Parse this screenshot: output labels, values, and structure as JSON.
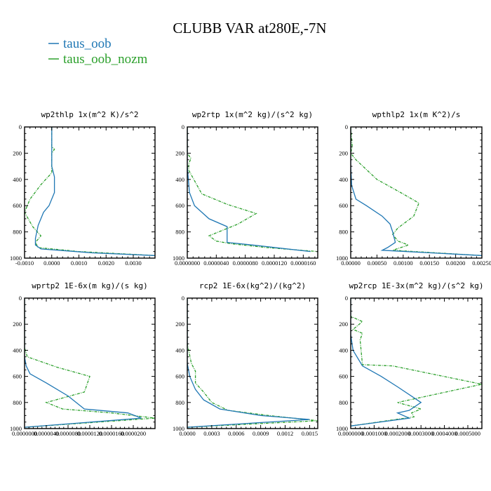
{
  "title": "CLUBB VAR at280E,-7N",
  "colors": {
    "taus_oob": "#1f77b4",
    "taus_oob_nozm": "#2ca02c"
  },
  "legend": [
    {
      "label": "taus_oob",
      "color": "#1f77b4"
    },
    {
      "label": "taus_oob_nozm",
      "color": "#2ca02c"
    }
  ],
  "chart_data": [
    {
      "type": "line",
      "title": "wp2thlp  1x(m^2 K)/s^2",
      "xlim": [
        -0.001,
        0.0038
      ],
      "ylim": [
        1000,
        0
      ],
      "yticks": [
        0,
        200,
        400,
        600,
        800,
        1000
      ],
      "xticks": [
        "-0.0010",
        "0.0000",
        "0.0010",
        "0.0020",
        "0.0030"
      ],
      "xtick_values": [
        -0.001,
        0.0,
        0.001,
        0.002,
        0.003
      ],
      "series": [
        {
          "name": "taus_oob",
          "x": [
            0.0,
            0.0,
            0.0,
            0.0001,
            0.0001,
            -0.0001,
            -0.0003,
            -0.0005,
            -0.0006,
            -0.0006,
            -0.0004,
            0.0015,
            0.0038
          ],
          "y": [
            0,
            150,
            300,
            380,
            500,
            600,
            650,
            750,
            850,
            900,
            930,
            960,
            980
          ]
        },
        {
          "name": "taus_oob_nozm",
          "x": [
            0.0,
            0.0,
            0.0001,
            0.0,
            0.0,
            -0.0004,
            -0.0008,
            -0.001,
            -0.0007,
            -0.0004,
            -0.0006,
            -0.0005,
            0.001,
            0.0038
          ],
          "y": [
            0,
            150,
            170,
            200,
            350,
            440,
            550,
            650,
            760,
            830,
            880,
            920,
            950,
            980
          ]
        }
      ]
    },
    {
      "type": "line",
      "title": "wp2rtp  1x(m^2 kg)/(s^2 kg)",
      "xlim": [
        0.0,
        1.8e-05
      ],
      "ylim": [
        1000,
        0
      ],
      "yticks": [
        0,
        200,
        400,
        600,
        800,
        1000
      ],
      "xticks": [
        "0.0000000",
        "0.0000040",
        "0.0000080",
        "0.0000120",
        "0.0000160"
      ],
      "xtick_values": [
        0.0,
        4e-06,
        8e-06,
        1.2e-05,
        1.6e-05
      ],
      "series": [
        {
          "name": "taus_oob",
          "x": [
            0.0,
            0.0,
            3e-07,
            1e-06,
            3e-06,
            5.5e-06,
            5.5e-06,
            9e-06,
            1.7e-05
          ],
          "y": [
            0,
            300,
            500,
            600,
            700,
            760,
            880,
            900,
            950
          ]
        },
        {
          "name": "taus_oob_nozm",
          "x": [
            0.0,
            0.0,
            5e-07,
            2e-07,
            2e-07,
            2e-06,
            5.5e-06,
            9.5e-06,
            7e-06,
            3e-06,
            4e-06,
            6e-06,
            1.1e-05,
            1.8e-05
          ],
          "y": [
            0,
            200,
            240,
            280,
            330,
            510,
            590,
            660,
            740,
            830,
            870,
            890,
            920,
            950
          ]
        }
      ]
    },
    {
      "type": "line",
      "title": "wpthlp2  1x(m K^2)/s",
      "xlim": [
        0.0,
        0.0025
      ],
      "ylim": [
        1000,
        0
      ],
      "yticks": [
        0,
        200,
        400,
        600,
        800,
        1000
      ],
      "xticks": [
        "0.00000",
        "0.00050",
        "0.00100",
        "0.00150",
        "0.00200",
        "0.00250"
      ],
      "xtick_values": [
        0.0,
        0.0005,
        0.001,
        0.0015,
        0.002,
        0.0025
      ],
      "series": [
        {
          "name": "taus_oob",
          "x": [
            0.0,
            0.0,
            2e-05,
            0.0001,
            0.0003,
            0.0006,
            0.00075,
            0.0008,
            0.00085,
            0.0007,
            0.0006,
            0.0025
          ],
          "y": [
            0,
            300,
            450,
            550,
            600,
            680,
            740,
            800,
            880,
            920,
            940,
            980
          ]
        },
        {
          "name": "taus_oob_nozm",
          "x": [
            0.0,
            3e-05,
            0.0,
            0.0001,
            0.0005,
            0.00095,
            0.0013,
            0.0012,
            0.0009,
            0.0008,
            0.0009,
            0.0011,
            0.0008,
            0.0025
          ],
          "y": [
            0,
            150,
            200,
            250,
            400,
            500,
            580,
            680,
            770,
            820,
            870,
            900,
            940,
            980
          ]
        }
      ]
    },
    {
      "type": "line",
      "title": "wprtp2  1E-6x(m kg)/(s kg)",
      "xlim": [
        0.0,
        2.4e-05
      ],
      "ylim": [
        1000,
        0
      ],
      "yticks": [
        0,
        200,
        400,
        600,
        800,
        1000
      ],
      "xticks": [
        "0.0000000",
        "0.0000040",
        "0.0000080",
        "0.0000120",
        "0.0000160",
        "0.0000200"
      ],
      "xtick_values": [
        0.0,
        4e-06,
        8e-06,
        1.2e-05,
        1.6e-05,
        2e-05
      ],
      "series": [
        {
          "name": "taus_oob",
          "x": [
            0.0,
            0.0,
            3e-07,
            1e-06,
            4e-06,
            8e-06,
            1.1e-05,
            1.9e-05,
            2.15e-05,
            0.0
          ],
          "y": [
            0,
            450,
            520,
            580,
            650,
            750,
            850,
            880,
            920,
            990
          ]
        },
        {
          "name": "taus_oob_nozm",
          "x": [
            0.0,
            0.0,
            5e-07,
            6e-06,
            1.2e-05,
            1.1e-05,
            4e-06,
            7e-06,
            1.6e-05,
            2.4e-05,
            0.0
          ],
          "y": [
            0,
            380,
            450,
            530,
            600,
            720,
            800,
            850,
            880,
            920,
            990
          ]
        }
      ]
    },
    {
      "type": "line",
      "title": "rcp2  1E-6x(kg^2)/(kg^2)",
      "xlim": [
        0.0,
        0.0016
      ],
      "ylim": [
        1000,
        0
      ],
      "yticks": [
        0,
        200,
        400,
        600,
        800,
        1000
      ],
      "xticks": [
        "0.0000",
        "0.0003",
        "0.0006",
        "0.0009",
        "0.0012",
        "0.0015"
      ],
      "xtick_values": [
        0.0,
        0.0003,
        0.0006,
        0.0009,
        0.0012,
        0.0015
      ],
      "series": [
        {
          "name": "taus_oob",
          "x": [
            0.0,
            0.0,
            3e-05,
            0.0001,
            0.0002,
            0.0004,
            0.0009,
            0.0015,
            0.0
          ],
          "y": [
            0,
            500,
            600,
            700,
            780,
            850,
            900,
            930,
            990
          ]
        },
        {
          "name": "taus_oob_nozm",
          "x": [
            0.0,
            0.0,
            5e-05,
            0.0001,
            0.0001,
            0.0002,
            0.0003,
            0.0005,
            0.001,
            0.0016,
            0.0
          ],
          "y": [
            0,
            350,
            500,
            560,
            650,
            720,
            800,
            860,
            900,
            940,
            990
          ]
        }
      ]
    },
    {
      "type": "line",
      "title": "wp2rcp  1E-3x(m^2 kg)/(s^2 kg)",
      "xlim": [
        0.0,
        0.00056
      ],
      "ylim": [
        1000,
        0
      ],
      "yticks": [
        0,
        200,
        400,
        600,
        800,
        1000
      ],
      "xticks": [
        "0.0000000",
        "0.0001000",
        "0.0002000",
        "0.0003000",
        "0.0004000",
        "0.0005000"
      ],
      "xtick_values": [
        0.0,
        0.0001,
        0.0002,
        0.0003,
        0.0004,
        0.0005
      ],
      "series": [
        {
          "name": "taus_oob",
          "x": [
            0.0,
            0.0,
            1e-05,
            5e-05,
            0.00013,
            0.0002,
            0.0003,
            0.00025,
            0.0002,
            0.00025,
            0.0
          ],
          "y": [
            0,
            280,
            400,
            520,
            600,
            680,
            800,
            860,
            880,
            920,
            980
          ]
        },
        {
          "name": "taus_oob_nozm",
          "x": [
            0.0,
            0.0,
            5e-05,
            1e-05,
            5e-05,
            4e-05,
            5e-05,
            0.00018,
            0.00056,
            0.0002,
            0.0003,
            0.00026,
            0.00027,
            0.0
          ],
          "y": [
            0,
            140,
            180,
            240,
            270,
            320,
            510,
            520,
            660,
            800,
            850,
            880,
            910,
            980
          ]
        }
      ]
    }
  ]
}
